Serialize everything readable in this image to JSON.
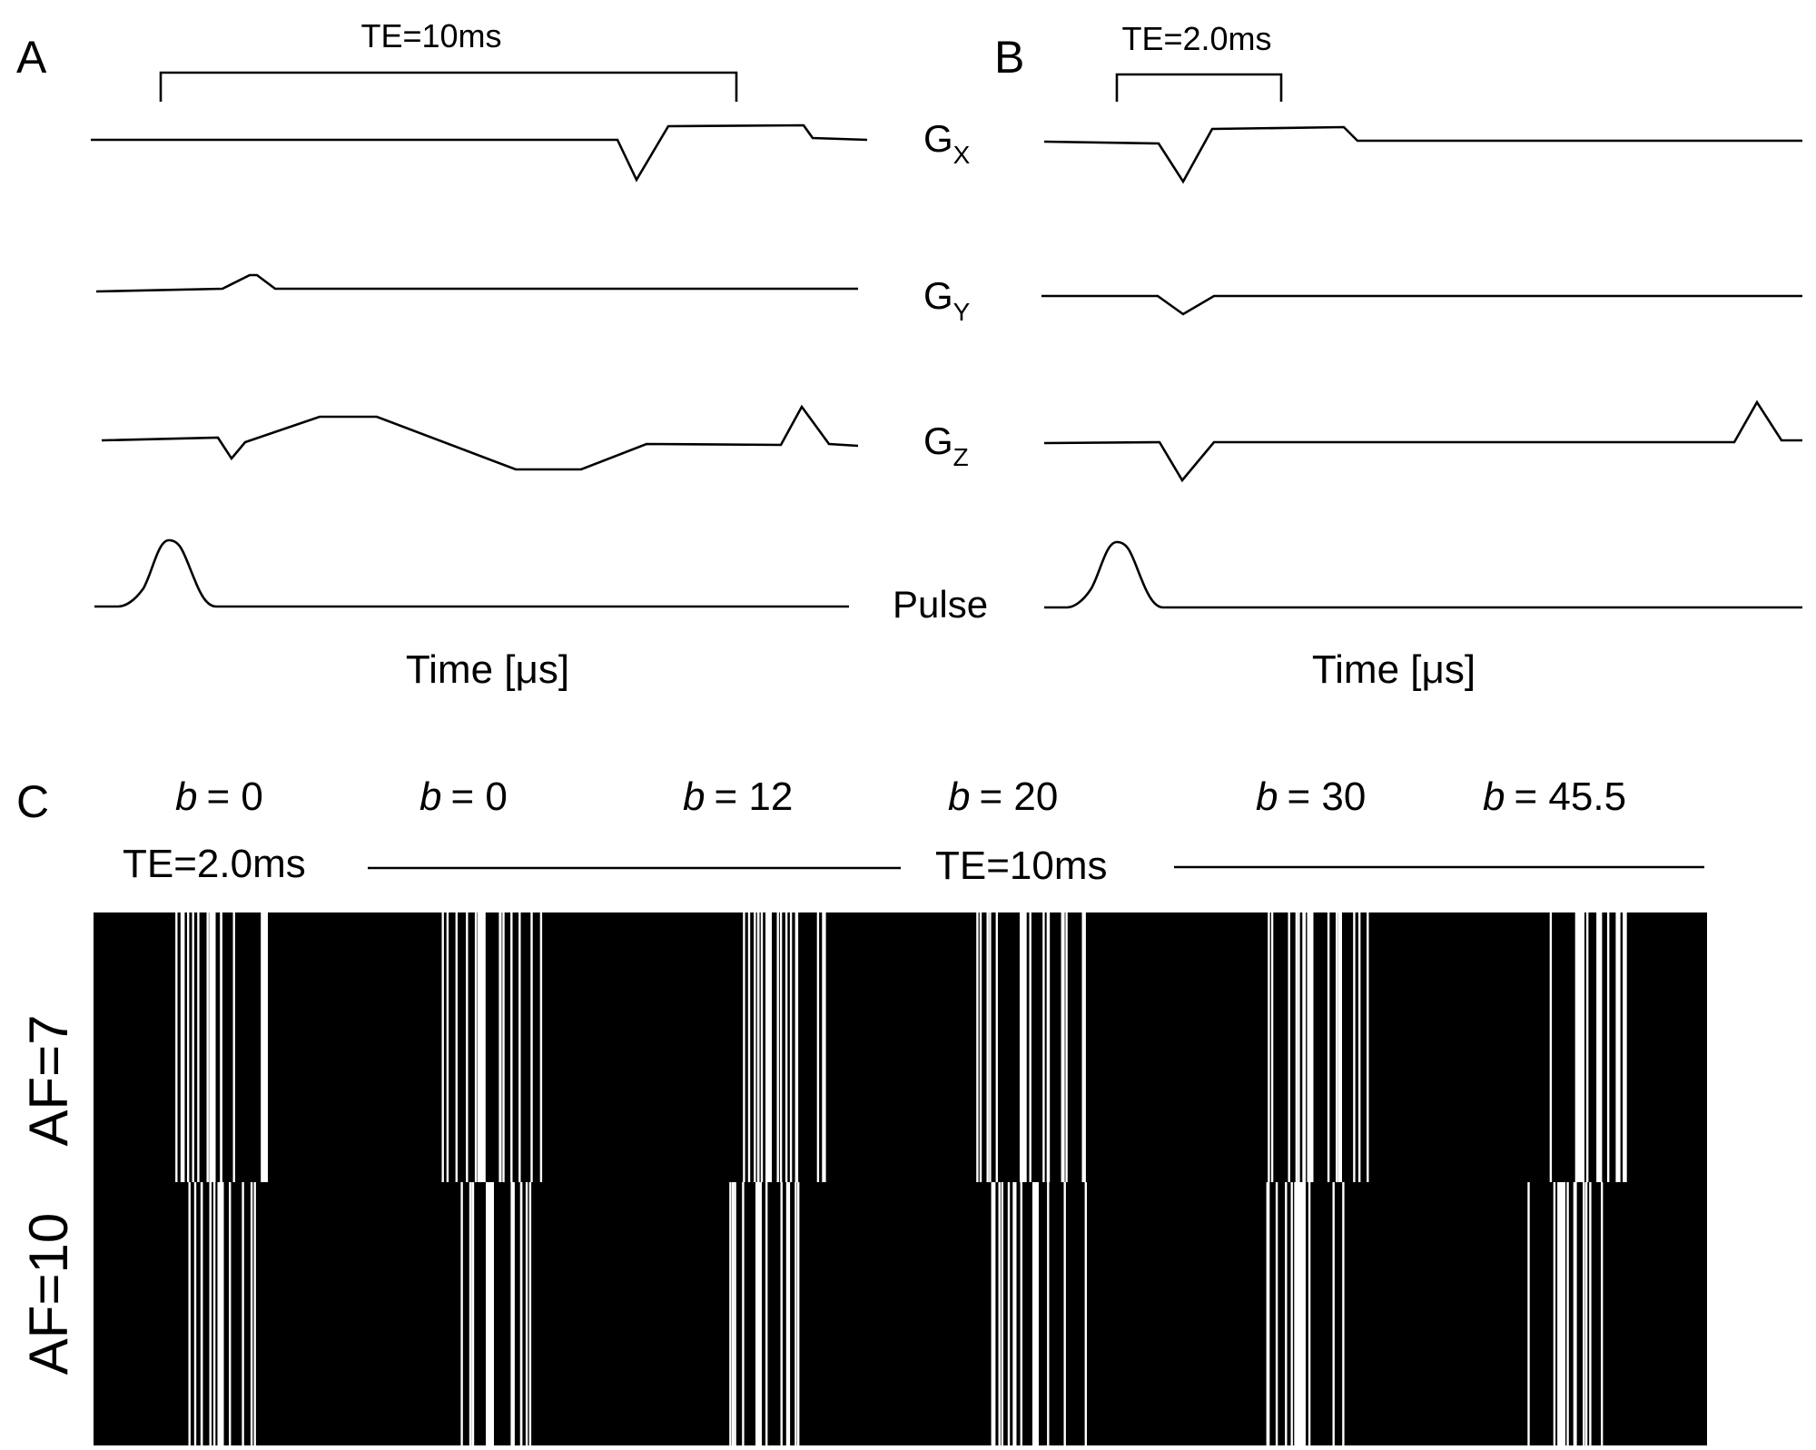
{
  "panels": {
    "A": {
      "letter": "A",
      "te_label": "TE=10ms",
      "axis_label": "Time [μs]"
    },
    "B": {
      "letter": "B",
      "te_label": "TE=2.0ms",
      "axis_label": "Time [μs]"
    },
    "C": {
      "letter": "C",
      "b_prefix": "b",
      "b_values": [
        "= 0",
        "= 0",
        "= 12",
        "= 20",
        "= 30",
        "= 45.5"
      ],
      "te_short": "TE=2.0ms",
      "te_long": "TE=10ms",
      "rows": [
        "AF=7",
        "AF=10"
      ]
    }
  },
  "channels": {
    "gx": {
      "base": "G",
      "sub": "X"
    },
    "gy": {
      "base": "G",
      "sub": "Y"
    },
    "gz": {
      "base": "G",
      "sub": "Z"
    },
    "pulse": "Pulse"
  }
}
